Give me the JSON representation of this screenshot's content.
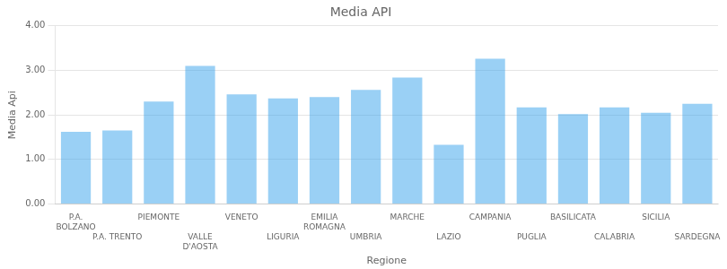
{
  "chart_data": {
    "type": "bar",
    "title": "Media API",
    "x_label": "Regione",
    "y_label": "Media Api",
    "categories": [
      "P.A.\nBOLZANO",
      "P.A. TRENTO",
      "PIEMONTE",
      "VALLE\nD'AOSTA",
      "VENETO",
      "LIGURIA",
      "EMILIA\nROMAGNA",
      "UMBRIA",
      "MARCHE",
      "LAZIO",
      "CAMPANIA",
      "PUGLIA",
      "BASILICATA",
      "CALABRIA",
      "SICILIA",
      "SARDEGNA"
    ],
    "values": [
      1.62,
      1.65,
      2.3,
      3.1,
      2.46,
      2.37,
      2.4,
      2.56,
      2.84,
      1.33,
      3.26,
      2.17,
      2.02,
      2.17,
      2.05,
      2.25
    ],
    "ylim": [
      0,
      4.0
    ],
    "yticks": [
      {
        "value": 0,
        "label": "0.00"
      },
      {
        "value": 1,
        "label": "1.00"
      },
      {
        "value": 2,
        "label": "2.00"
      },
      {
        "value": 3,
        "label": "3.00"
      },
      {
        "value": 4,
        "label": "4.00"
      }
    ],
    "grid": true
  }
}
